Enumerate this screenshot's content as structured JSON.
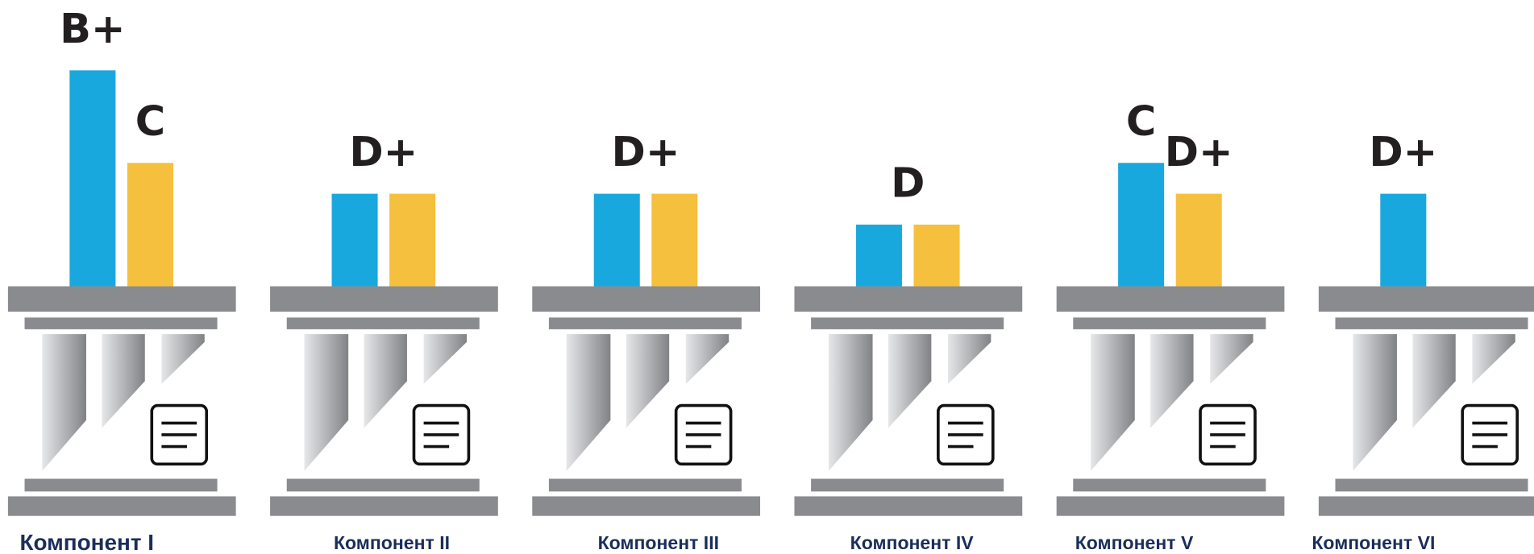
{
  "chart_data": {
    "type": "bar",
    "categories": [
      "Компонент I",
      "Компонент II",
      "Компонент III",
      "Компонент IV",
      "Компонент V",
      "Компонент VI"
    ],
    "series": [
      {
        "color": "#19a8de",
        "values": [
          7,
          3,
          3,
          2,
          4,
          3
        ],
        "value_labels": [
          "B+",
          "D+",
          "D+",
          "D",
          "C",
          "D+"
        ]
      },
      {
        "color": "#f5c03d",
        "values": [
          4,
          3,
          3,
          2,
          3,
          null
        ],
        "value_labels": [
          "C",
          null,
          null,
          null,
          "D+",
          null
        ]
      }
    ],
    "ylim": [
      0,
      7
    ]
  }
}
